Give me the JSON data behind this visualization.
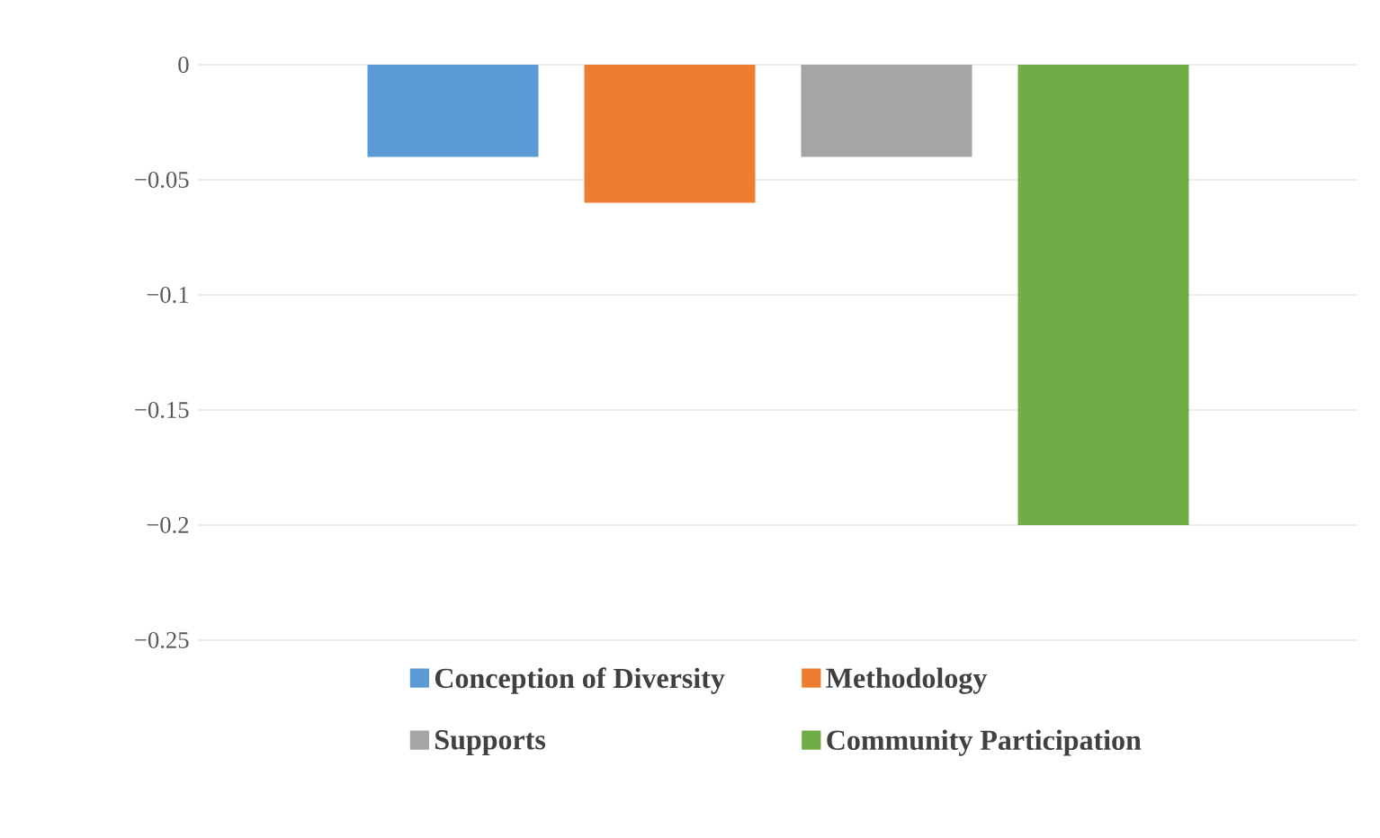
{
  "chart_data": {
    "type": "bar",
    "categories": [
      null
    ],
    "series": [
      {
        "name": "Conception of Diversity",
        "color": "#5b9bd5",
        "values": [
          -0.04
        ]
      },
      {
        "name": "Methodology",
        "color": "#ed7d31",
        "values": [
          -0.06
        ]
      },
      {
        "name": "Supports",
        "color": "#a5a5a5",
        "values": [
          -0.04
        ]
      },
      {
        "name": "Community Participation",
        "color": "#70ad47",
        "values": [
          -0.2
        ]
      }
    ],
    "ylim": [
      -0.25,
      0
    ],
    "yticks": [
      {
        "value": 0,
        "label": "0"
      },
      {
        "value": -0.05,
        "label": "−0.05"
      },
      {
        "value": -0.1,
        "label": "−0.1"
      },
      {
        "value": -0.15,
        "label": "−0.15"
      },
      {
        "value": -0.2,
        "label": "−0.2"
      },
      {
        "value": -0.25,
        "label": "−0.25"
      }
    ],
    "grid": "y",
    "legend": "bottom"
  }
}
